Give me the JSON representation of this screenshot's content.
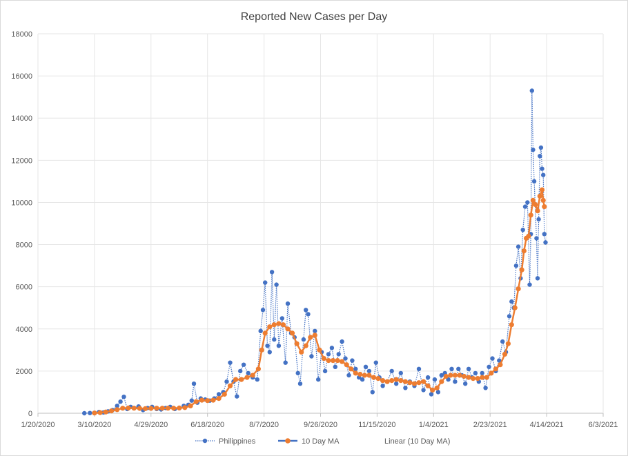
{
  "chart_data": {
    "type": "line",
    "title": "Reported New Cases per Day",
    "xlabel": "",
    "ylabel": "",
    "ylim": [
      0,
      18000
    ],
    "y_ticks": [
      "0",
      "2000",
      "4000",
      "6000",
      "8000",
      "10000",
      "12000",
      "14000",
      "16000",
      "18000"
    ],
    "xlim": [
      "2020-01-20",
      "2021-06-03"
    ],
    "x_ticks": [
      {
        "date": "2020-01-20",
        "label": "1/20/2020"
      },
      {
        "date": "2020-03-10",
        "label": "3/10/2020"
      },
      {
        "date": "2020-04-29",
        "label": "4/29/2020"
      },
      {
        "date": "2020-06-18",
        "label": "6/18/2020"
      },
      {
        "date": "2020-08-07",
        "label": "8/7/2020"
      },
      {
        "date": "2020-09-26",
        "label": "9/26/2020"
      },
      {
        "date": "2020-11-15",
        "label": "11/15/2020"
      },
      {
        "date": "2021-01-04",
        "label": "1/4/2021"
      },
      {
        "date": "2021-02-23",
        "label": "2/23/2021"
      },
      {
        "date": "2021-04-14",
        "label": "4/14/2021"
      },
      {
        "date": "2021-06-03",
        "label": "6/3/2021"
      }
    ],
    "legend_position": "bottom",
    "grid": true,
    "series": [
      {
        "name": "Philippines",
        "color": "#4472c4",
        "style": "dotted-line-with-markers",
        "points": [
          [
            "2020-03-01",
            0
          ],
          [
            "2020-03-06",
            10
          ],
          [
            "2020-03-10",
            20
          ],
          [
            "2020-03-14",
            60
          ],
          [
            "2020-03-18",
            40
          ],
          [
            "2020-03-22",
            90
          ],
          [
            "2020-03-26",
            150
          ],
          [
            "2020-03-30",
            350
          ],
          [
            "2020-04-02",
            550
          ],
          [
            "2020-04-05",
            780
          ],
          [
            "2020-04-08",
            200
          ],
          [
            "2020-04-11",
            300
          ],
          [
            "2020-04-14",
            250
          ],
          [
            "2020-04-18",
            320
          ],
          [
            "2020-04-22",
            150
          ],
          [
            "2020-04-26",
            250
          ],
          [
            "2020-04-30",
            300
          ],
          [
            "2020-05-04",
            200
          ],
          [
            "2020-05-08",
            180
          ],
          [
            "2020-05-12",
            250
          ],
          [
            "2020-05-16",
            300
          ],
          [
            "2020-05-20",
            200
          ],
          [
            "2020-05-24",
            250
          ],
          [
            "2020-05-28",
            350
          ],
          [
            "2020-06-01",
            400
          ],
          [
            "2020-06-04",
            600
          ],
          [
            "2020-06-06",
            1400
          ],
          [
            "2020-06-09",
            500
          ],
          [
            "2020-06-12",
            700
          ],
          [
            "2020-06-16",
            650
          ],
          [
            "2020-06-20",
            600
          ],
          [
            "2020-06-24",
            700
          ],
          [
            "2020-06-28",
            900
          ],
          [
            "2020-07-02",
            1000
          ],
          [
            "2020-07-05",
            1500
          ],
          [
            "2020-07-08",
            2400
          ],
          [
            "2020-07-11",
            1500
          ],
          [
            "2020-07-14",
            800
          ],
          [
            "2020-07-17",
            2000
          ],
          [
            "2020-07-20",
            2300
          ],
          [
            "2020-07-24",
            1900
          ],
          [
            "2020-07-28",
            1700
          ],
          [
            "2020-08-01",
            1600
          ],
          [
            "2020-08-04",
            3900
          ],
          [
            "2020-08-06",
            4900
          ],
          [
            "2020-08-08",
            6200
          ],
          [
            "2020-08-10",
            3200
          ],
          [
            "2020-08-12",
            2900
          ],
          [
            "2020-08-14",
            6700
          ],
          [
            "2020-08-16",
            3500
          ],
          [
            "2020-08-18",
            6100
          ],
          [
            "2020-08-20",
            3200
          ],
          [
            "2020-08-23",
            4500
          ],
          [
            "2020-08-26",
            2400
          ],
          [
            "2020-08-28",
            5200
          ],
          [
            "2020-08-31",
            3800
          ],
          [
            "2020-09-03",
            3600
          ],
          [
            "2020-09-06",
            1900
          ],
          [
            "2020-09-08",
            1400
          ],
          [
            "2020-09-11",
            3500
          ],
          [
            "2020-09-13",
            4900
          ],
          [
            "2020-09-15",
            4700
          ],
          [
            "2020-09-18",
            2700
          ],
          [
            "2020-09-21",
            3900
          ],
          [
            "2020-09-24",
            1600
          ],
          [
            "2020-09-27",
            2900
          ],
          [
            "2020-09-30",
            2000
          ],
          [
            "2020-10-03",
            2800
          ],
          [
            "2020-10-06",
            3100
          ],
          [
            "2020-10-09",
            2200
          ],
          [
            "2020-10-12",
            2800
          ],
          [
            "2020-10-15",
            3400
          ],
          [
            "2020-10-18",
            2600
          ],
          [
            "2020-10-21",
            1800
          ],
          [
            "2020-10-24",
            2500
          ],
          [
            "2020-10-27",
            2100
          ],
          [
            "2020-10-30",
            1700
          ],
          [
            "2020-11-02",
            1600
          ],
          [
            "2020-11-05",
            2200
          ],
          [
            "2020-11-08",
            2000
          ],
          [
            "2020-11-11",
            1000
          ],
          [
            "2020-11-14",
            2400
          ],
          [
            "2020-11-17",
            1700
          ],
          [
            "2020-11-20",
            1300
          ],
          [
            "2020-11-24",
            1500
          ],
          [
            "2020-11-28",
            2000
          ],
          [
            "2020-12-02",
            1400
          ],
          [
            "2020-12-06",
            1900
          ],
          [
            "2020-12-10",
            1200
          ],
          [
            "2020-12-14",
            1500
          ],
          [
            "2020-12-18",
            1300
          ],
          [
            "2020-12-22",
            2100
          ],
          [
            "2020-12-26",
            1100
          ],
          [
            "2020-12-30",
            1700
          ],
          [
            "2021-01-02",
            900
          ],
          [
            "2021-01-05",
            1600
          ],
          [
            "2021-01-08",
            1000
          ],
          [
            "2021-01-11",
            1800
          ],
          [
            "2021-01-14",
            1900
          ],
          [
            "2021-01-17",
            1600
          ],
          [
            "2021-01-20",
            2100
          ],
          [
            "2021-01-23",
            1500
          ],
          [
            "2021-01-26",
            2100
          ],
          [
            "2021-01-29",
            1800
          ],
          [
            "2021-02-01",
            1400
          ],
          [
            "2021-02-04",
            2100
          ],
          [
            "2021-02-07",
            1700
          ],
          [
            "2021-02-10",
            1900
          ],
          [
            "2021-02-13",
            1500
          ],
          [
            "2021-02-16",
            1900
          ],
          [
            "2021-02-19",
            1200
          ],
          [
            "2021-02-22",
            2200
          ],
          [
            "2021-02-25",
            2600
          ],
          [
            "2021-02-28",
            2000
          ],
          [
            "2021-03-03",
            2500
          ],
          [
            "2021-03-06",
            3400
          ],
          [
            "2021-03-09",
            2900
          ],
          [
            "2021-03-12",
            4600
          ],
          [
            "2021-03-14",
            5300
          ],
          [
            "2021-03-16",
            5000
          ],
          [
            "2021-03-18",
            7000
          ],
          [
            "2021-03-20",
            7900
          ],
          [
            "2021-03-22",
            6400
          ],
          [
            "2021-03-24",
            8700
          ],
          [
            "2021-03-26",
            9800
          ],
          [
            "2021-03-28",
            10000
          ],
          [
            "2021-03-30",
            6100
          ],
          [
            "2021-03-31",
            8500
          ],
          [
            "2021-04-01",
            15300
          ],
          [
            "2021-04-02",
            12500
          ],
          [
            "2021-04-03",
            11000
          ],
          [
            "2021-04-05",
            8300
          ],
          [
            "2021-04-06",
            6400
          ],
          [
            "2021-04-07",
            9200
          ],
          [
            "2021-04-08",
            12200
          ],
          [
            "2021-04-09",
            12600
          ],
          [
            "2021-04-10",
            11600
          ],
          [
            "2021-04-11",
            11300
          ],
          [
            "2021-04-12",
            8500
          ],
          [
            "2021-04-13",
            8100
          ]
        ]
      },
      {
        "name": "10 Day MA",
        "color": "#ed7d31",
        "style": "line-with-markers",
        "points": [
          [
            "2020-03-10",
            10
          ],
          [
            "2020-03-15",
            30
          ],
          [
            "2020-03-20",
            60
          ],
          [
            "2020-03-25",
            110
          ],
          [
            "2020-03-30",
            170
          ],
          [
            "2020-04-04",
            240
          ],
          [
            "2020-04-09",
            250
          ],
          [
            "2020-04-14",
            240
          ],
          [
            "2020-04-19",
            230
          ],
          [
            "2020-04-24",
            220
          ],
          [
            "2020-04-29",
            230
          ],
          [
            "2020-05-04",
            240
          ],
          [
            "2020-05-09",
            240
          ],
          [
            "2020-05-14",
            240
          ],
          [
            "2020-05-19",
            240
          ],
          [
            "2020-05-24",
            250
          ],
          [
            "2020-05-29",
            270
          ],
          [
            "2020-06-03",
            350
          ],
          [
            "2020-06-08",
            550
          ],
          [
            "2020-06-13",
            620
          ],
          [
            "2020-06-18",
            600
          ],
          [
            "2020-06-23",
            620
          ],
          [
            "2020-06-28",
            700
          ],
          [
            "2020-07-03",
            900
          ],
          [
            "2020-07-08",
            1300
          ],
          [
            "2020-07-13",
            1600
          ],
          [
            "2020-07-18",
            1600
          ],
          [
            "2020-07-23",
            1700
          ],
          [
            "2020-07-28",
            1800
          ],
          [
            "2020-08-02",
            2100
          ],
          [
            "2020-08-05",
            3000
          ],
          [
            "2020-08-08",
            3800
          ],
          [
            "2020-08-12",
            4100
          ],
          [
            "2020-08-16",
            4200
          ],
          [
            "2020-08-20",
            4250
          ],
          [
            "2020-08-24",
            4200
          ],
          [
            "2020-08-28",
            4000
          ],
          [
            "2020-09-01",
            3800
          ],
          [
            "2020-09-05",
            3300
          ],
          [
            "2020-09-09",
            2900
          ],
          [
            "2020-09-13",
            3200
          ],
          [
            "2020-09-17",
            3600
          ],
          [
            "2020-09-21",
            3700
          ],
          [
            "2020-09-25",
            3000
          ],
          [
            "2020-09-29",
            2600
          ],
          [
            "2020-10-03",
            2500
          ],
          [
            "2020-10-07",
            2500
          ],
          [
            "2020-10-11",
            2500
          ],
          [
            "2020-10-15",
            2450
          ],
          [
            "2020-10-19",
            2300
          ],
          [
            "2020-10-23",
            2100
          ],
          [
            "2020-10-27",
            1900
          ],
          [
            "2020-10-31",
            1850
          ],
          [
            "2020-11-04",
            1800
          ],
          [
            "2020-11-08",
            1800
          ],
          [
            "2020-11-12",
            1700
          ],
          [
            "2020-11-16",
            1650
          ],
          [
            "2020-11-20",
            1550
          ],
          [
            "2020-11-24",
            1500
          ],
          [
            "2020-11-28",
            1550
          ],
          [
            "2020-12-02",
            1600
          ],
          [
            "2020-12-06",
            1550
          ],
          [
            "2020-12-10",
            1500
          ],
          [
            "2020-12-14",
            1450
          ],
          [
            "2020-12-18",
            1400
          ],
          [
            "2020-12-22",
            1450
          ],
          [
            "2020-12-26",
            1500
          ],
          [
            "2020-12-30",
            1300
          ],
          [
            "2021-01-03",
            1100
          ],
          [
            "2021-01-07",
            1200
          ],
          [
            "2021-01-11",
            1500
          ],
          [
            "2021-01-15",
            1750
          ],
          [
            "2021-01-19",
            1800
          ],
          [
            "2021-01-23",
            1800
          ],
          [
            "2021-01-27",
            1800
          ],
          [
            "2021-01-31",
            1750
          ],
          [
            "2021-02-04",
            1700
          ],
          [
            "2021-02-08",
            1650
          ],
          [
            "2021-02-12",
            1650
          ],
          [
            "2021-02-16",
            1700
          ],
          [
            "2021-02-20",
            1700
          ],
          [
            "2021-02-24",
            1900
          ],
          [
            "2021-02-28",
            2100
          ],
          [
            "2021-03-04",
            2300
          ],
          [
            "2021-03-08",
            2800
          ],
          [
            "2021-03-11",
            3300
          ],
          [
            "2021-03-14",
            4200
          ],
          [
            "2021-03-17",
            5000
          ],
          [
            "2021-03-20",
            5900
          ],
          [
            "2021-03-23",
            6800
          ],
          [
            "2021-03-25",
            7700
          ],
          [
            "2021-03-27",
            8300
          ],
          [
            "2021-03-29",
            8400
          ],
          [
            "2021-03-31",
            9400
          ],
          [
            "2021-04-02",
            10100
          ],
          [
            "2021-04-04",
            9900
          ],
          [
            "2021-04-06",
            9600
          ],
          [
            "2021-04-08",
            10300
          ],
          [
            "2021-04-10",
            10600
          ],
          [
            "2021-04-11",
            10100
          ],
          [
            "2021-04-12",
            9800
          ]
        ]
      }
    ],
    "legend": [
      {
        "label": "Philippines",
        "color": "#4472c4",
        "style": "dotted-marker"
      },
      {
        "label": "10 Day MA",
        "color": "#ed7d31",
        "style": "solid-marker"
      },
      {
        "label": "Linear (10 Day MA)",
        "color": "#ed7d31",
        "style": "trendline"
      }
    ]
  }
}
